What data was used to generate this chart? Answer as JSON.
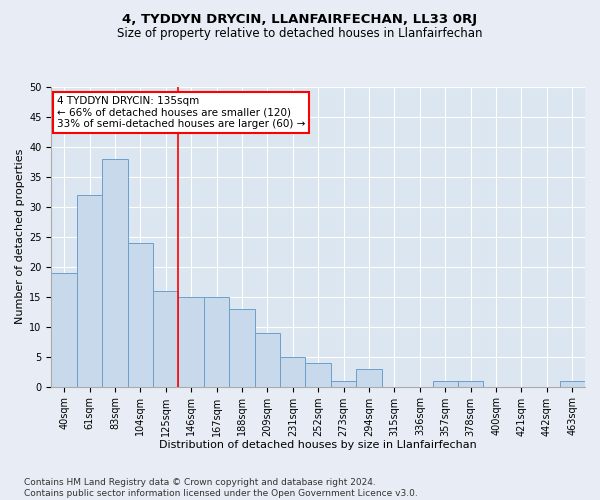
{
  "title": "4, TYDDYN DRYCIN, LLANFAIRFECHAN, LL33 0RJ",
  "subtitle": "Size of property relative to detached houses in Llanfairfechan",
  "xlabel": "Distribution of detached houses by size in Llanfairfechan",
  "ylabel": "Number of detached properties",
  "footer_line1": "Contains HM Land Registry data © Crown copyright and database right 2024.",
  "footer_line2": "Contains public sector information licensed under the Open Government Licence v3.0.",
  "categories": [
    "40sqm",
    "61sqm",
    "83sqm",
    "104sqm",
    "125sqm",
    "146sqm",
    "167sqm",
    "188sqm",
    "209sqm",
    "231sqm",
    "252sqm",
    "273sqm",
    "294sqm",
    "315sqm",
    "336sqm",
    "357sqm",
    "378sqm",
    "400sqm",
    "421sqm",
    "442sqm",
    "463sqm"
  ],
  "values": [
    19,
    32,
    38,
    24,
    16,
    15,
    15,
    13,
    9,
    5,
    4,
    1,
    3,
    0,
    0,
    1,
    1,
    0,
    0,
    0,
    1
  ],
  "bar_color": "#c9d9ec",
  "bar_edge_color": "#6aa0cc",
  "annotation_line1": "4 TYDDYN DRYCIN: 135sqm",
  "annotation_line2": "← 66% of detached houses are smaller (120)",
  "annotation_line3": "33% of semi-detached houses are larger (60) →",
  "annotation_box_color": "white",
  "annotation_box_edge_color": "red",
  "vline_x_index": 4.5,
  "vline_color": "red",
  "ylim": [
    0,
    50
  ],
  "yticks": [
    0,
    5,
    10,
    15,
    20,
    25,
    30,
    35,
    40,
    45,
    50
  ],
  "background_color": "#e8edf5",
  "plot_bg_color": "#dce6f0",
  "grid_color": "white",
  "title_fontsize": 9.5,
  "subtitle_fontsize": 8.5,
  "xlabel_fontsize": 8,
  "ylabel_fontsize": 8,
  "tick_fontsize": 7,
  "annotation_fontsize": 7.5,
  "footer_fontsize": 6.5
}
